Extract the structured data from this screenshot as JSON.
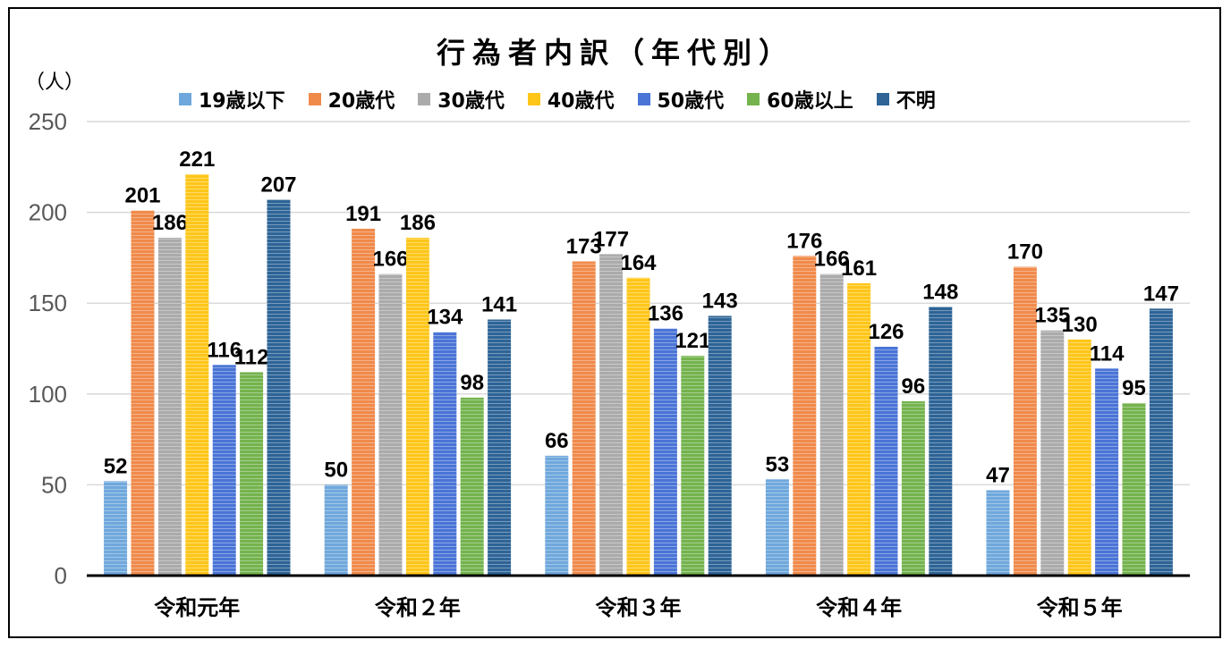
{
  "chart_data": {
    "type": "bar",
    "title": "行為者内訳（年代別）",
    "ylabel": "（人）",
    "xlabel": "",
    "ylim": [
      0,
      250
    ],
    "yticks": [
      0,
      50,
      100,
      150,
      200,
      250
    ],
    "grid": true,
    "legend_position": "top",
    "categories": [
      "令和元年",
      "令和２年",
      "令和３年",
      "令和４年",
      "令和５年"
    ],
    "series": [
      {
        "name": "19歳以下",
        "color": "#6FA8DC",
        "values": [
          52,
          50,
          66,
          53,
          47
        ]
      },
      {
        "name": "20歳代",
        "color": "#F08A4B",
        "values": [
          201,
          191,
          173,
          176,
          170
        ]
      },
      {
        "name": "30歳代",
        "color": "#ABABAB",
        "values": [
          186,
          166,
          177,
          166,
          135
        ]
      },
      {
        "name": "40歳代",
        "color": "#FFC61A",
        "values": [
          221,
          186,
          164,
          161,
          130
        ]
      },
      {
        "name": "50歳代",
        "color": "#4A74D6",
        "values": [
          116,
          134,
          136,
          126,
          114
        ]
      },
      {
        "name": "60歳以上",
        "color": "#74B34E",
        "values": [
          112,
          98,
          121,
          96,
          95
        ]
      },
      {
        "name": "不明",
        "color": "#2E6496",
        "values": [
          207,
          141,
          143,
          148,
          147
        ]
      }
    ]
  }
}
